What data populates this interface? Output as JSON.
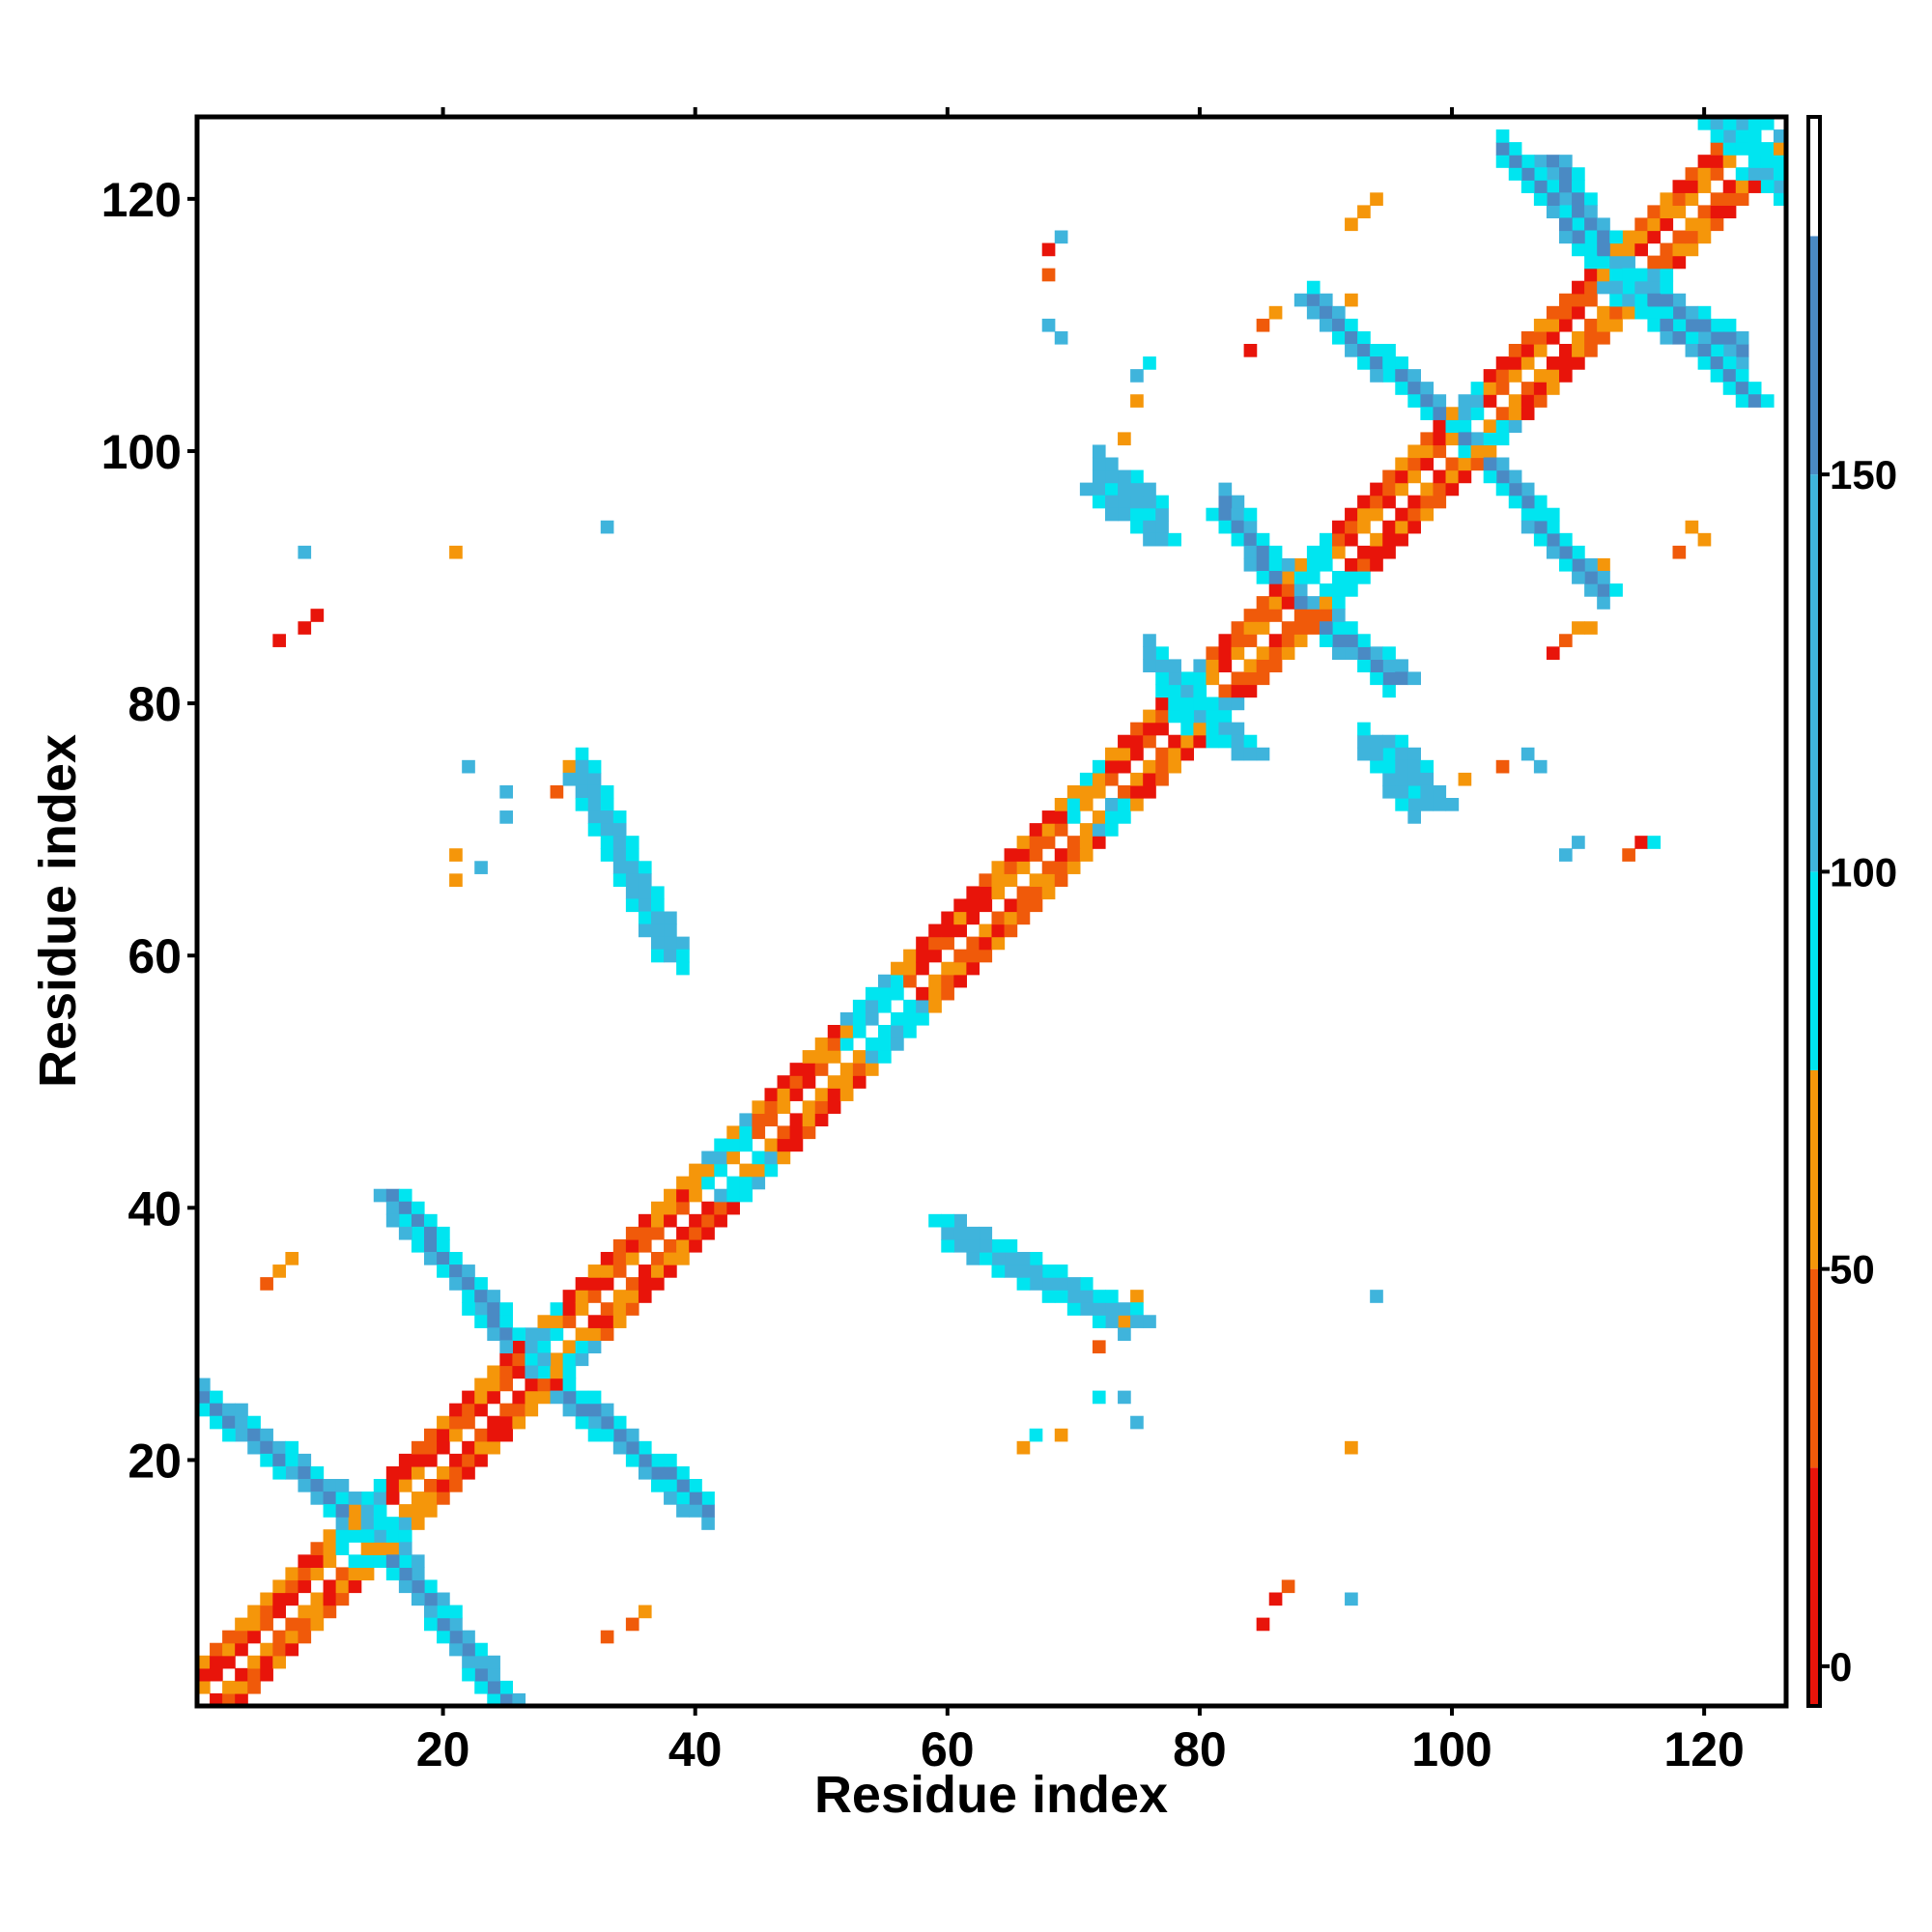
{
  "chart_data": {
    "type": "heatmap",
    "xlabel": "Residue index",
    "ylabel": "Residue index",
    "xlim": [
      1,
      126
    ],
    "ylim": [
      1,
      126
    ],
    "x_ticks": [
      20,
      40,
      60,
      80,
      100,
      120
    ],
    "y_ticks": [
      20,
      40,
      60,
      80,
      100,
      120
    ],
    "colorbar": {
      "ticks": [
        0,
        50,
        100,
        150
      ],
      "range": [
        -5,
        195
      ],
      "stops": [
        {
          "from": -5,
          "to": 25,
          "color": "#e8140a"
        },
        {
          "from": 25,
          "to": 50,
          "color": "#f05a0a"
        },
        {
          "from": 50,
          "to": 75,
          "color": "#f5960a"
        },
        {
          "from": 75,
          "to": 100,
          "color": "#00e5f0"
        },
        {
          "from": 100,
          "to": 150,
          "color": "#3fb4dc"
        },
        {
          "from": 150,
          "to": 180,
          "color": "#4a8ac4"
        },
        {
          "from": 180,
          "to": 195,
          "color": "#ffffff"
        }
      ]
    },
    "diagonal_band": {
      "from": 1,
      "to": 126,
      "width": 3
    },
    "diagonal_bands": [
      {
        "from": 1,
        "to": 12,
        "mix": "warm"
      },
      {
        "from": 12,
        "to": 16,
        "mix": "cyan"
      },
      {
        "from": 16,
        "to": 27,
        "mix": "warm"
      },
      {
        "from": 27,
        "to": 30,
        "mix": "cyan"
      },
      {
        "from": 30,
        "to": 41,
        "mix": "warm"
      },
      {
        "from": 41,
        "to": 45,
        "mix": "cyan"
      },
      {
        "from": 45,
        "to": 52,
        "mix": "warm"
      },
      {
        "from": 52,
        "to": 57,
        "mix": "cyan"
      },
      {
        "from": 57,
        "to": 70,
        "mix": "warm"
      },
      {
        "from": 70,
        "to": 73,
        "mix": "cyan"
      },
      {
        "from": 73,
        "to": 78,
        "mix": "warm"
      },
      {
        "from": 78,
        "to": 81,
        "mix": "cyan"
      },
      {
        "from": 81,
        "to": 88,
        "mix": "warm"
      },
      {
        "from": 88,
        "to": 91,
        "mix": "cyan"
      },
      {
        "from": 91,
        "to": 100,
        "mix": "warm"
      },
      {
        "from": 100,
        "to": 103,
        "mix": "cyan"
      },
      {
        "from": 103,
        "to": 112,
        "mix": "warm"
      },
      {
        "from": 112,
        "to": 115,
        "mix": "cyan"
      },
      {
        "from": 115,
        "to": 122,
        "mix": "warm"
      },
      {
        "from": 122,
        "to": 126,
        "mix": "cyan"
      }
    ],
    "anti_diagonal_strands": [
      {
        "x0": 1,
        "y0": 25,
        "x1": 15,
        "y1": 14,
        "value": 155
      },
      {
        "x0": 15,
        "y0": 14,
        "x1": 25,
        "y1": 1,
        "value": 155
      },
      {
        "x0": 16,
        "y0": 41,
        "x1": 27,
        "y1": 28,
        "value": 155
      },
      {
        "x0": 27,
        "y0": 28,
        "x1": 40,
        "y1": 16,
        "value": 155
      },
      {
        "x0": 31,
        "y0": 74,
        "x1": 38,
        "y1": 60,
        "value": 140
      },
      {
        "x0": 60,
        "y0": 39,
        "x1": 75,
        "y1": 31,
        "value": 140
      },
      {
        "x0": 78,
        "y0": 81,
        "x1": 84,
        "y1": 76,
        "value": 110
      },
      {
        "x0": 82,
        "y0": 95,
        "x1": 88,
        "y1": 88,
        "value": 155
      },
      {
        "x0": 88,
        "y0": 88,
        "x1": 96,
        "y1": 82,
        "value": 155
      },
      {
        "x0": 89,
        "y0": 112,
        "x1": 101,
        "y1": 101,
        "value": 155
      },
      {
        "x0": 101,
        "y0": 101,
        "x1": 112,
        "y1": 89,
        "value": 155
      },
      {
        "x0": 108,
        "y0": 123,
        "x1": 114,
        "y1": 113,
        "value": 155
      },
      {
        "x0": 114,
        "y0": 113,
        "x1": 124,
        "y1": 104,
        "value": 155
      },
      {
        "x0": 121,
        "y0": 126,
        "x1": 126,
        "y1": 122,
        "value": 140
      },
      {
        "x0": 72,
        "y0": 97,
        "x1": 77,
        "y1": 93,
        "value": 130
      },
      {
        "x0": 95,
        "y0": 77,
        "x1": 99,
        "y1": 72,
        "value": 130
      }
    ],
    "scatter_cells": [
      {
        "x": 7,
        "y": 85,
        "value": 5
      },
      {
        "x": 9,
        "y": 86,
        "value": 5
      },
      {
        "x": 10,
        "y": 87,
        "value": 10
      },
      {
        "x": 9,
        "y": 92,
        "value": 120
      },
      {
        "x": 21,
        "y": 92,
        "value": 60
      },
      {
        "x": 33,
        "y": 94,
        "value": 120
      },
      {
        "x": 22,
        "y": 75,
        "value": 120
      },
      {
        "x": 25,
        "y": 73,
        "value": 130
      },
      {
        "x": 25,
        "y": 71,
        "value": 110
      },
      {
        "x": 29,
        "y": 73,
        "value": 30
      },
      {
        "x": 30,
        "y": 75,
        "value": 50
      },
      {
        "x": 31,
        "y": 76,
        "value": 90
      },
      {
        "x": 21,
        "y": 66,
        "value": 60
      },
      {
        "x": 21,
        "y": 68,
        "value": 60
      },
      {
        "x": 23,
        "y": 67,
        "value": 100
      },
      {
        "x": 6,
        "y": 34,
        "value": 40
      },
      {
        "x": 7,
        "y": 35,
        "value": 50
      },
      {
        "x": 8,
        "y": 36,
        "value": 60
      },
      {
        "x": 33,
        "y": 6,
        "value": 40
      },
      {
        "x": 35,
        "y": 7,
        "value": 40
      },
      {
        "x": 36,
        "y": 8,
        "value": 60
      },
      {
        "x": 66,
        "y": 21,
        "value": 60
      },
      {
        "x": 67,
        "y": 22,
        "value": 90
      },
      {
        "x": 69,
        "y": 22,
        "value": 60
      },
      {
        "x": 72,
        "y": 29,
        "value": 30
      },
      {
        "x": 74,
        "y": 31,
        "value": 60
      },
      {
        "x": 75,
        "y": 33,
        "value": 60
      },
      {
        "x": 72,
        "y": 25,
        "value": 90
      },
      {
        "x": 74,
        "y": 25,
        "value": 140
      },
      {
        "x": 75,
        "y": 23,
        "value": 140
      },
      {
        "x": 85,
        "y": 7,
        "value": 10
      },
      {
        "x": 86,
        "y": 9,
        "value": 10
      },
      {
        "x": 87,
        "y": 10,
        "value": 30
      },
      {
        "x": 92,
        "y": 9,
        "value": 130
      },
      {
        "x": 92,
        "y": 21,
        "value": 50
      },
      {
        "x": 94,
        "y": 33,
        "value": 130
      },
      {
        "x": 68,
        "y": 114,
        "value": 40
      },
      {
        "x": 68,
        "y": 116,
        "value": 10
      },
      {
        "x": 69,
        "y": 117,
        "value": 100
      },
      {
        "x": 68,
        "y": 110,
        "value": 120
      },
      {
        "x": 69,
        "y": 109,
        "value": 100
      },
      {
        "x": 75,
        "y": 104,
        "value": 60
      },
      {
        "x": 75,
        "y": 106,
        "value": 120
      },
      {
        "x": 76,
        "y": 107,
        "value": 90
      },
      {
        "x": 74,
        "y": 101,
        "value": 60
      },
      {
        "x": 84,
        "y": 108,
        "value": 10
      },
      {
        "x": 85,
        "y": 110,
        "value": 30
      },
      {
        "x": 86,
        "y": 111,
        "value": 50
      },
      {
        "x": 92,
        "y": 112,
        "value": 60
      },
      {
        "x": 92,
        "y": 118,
        "value": 50
      },
      {
        "x": 93,
        "y": 119,
        "value": 60
      },
      {
        "x": 94,
        "y": 120,
        "value": 70
      },
      {
        "x": 101,
        "y": 74,
        "value": 60
      },
      {
        "x": 104,
        "y": 75,
        "value": 40
      },
      {
        "x": 106,
        "y": 76,
        "value": 100
      },
      {
        "x": 107,
        "y": 75,
        "value": 100
      },
      {
        "x": 108,
        "y": 84,
        "value": 10
      },
      {
        "x": 109,
        "y": 85,
        "value": 30
      },
      {
        "x": 110,
        "y": 86,
        "value": 50
      },
      {
        "x": 111,
        "y": 86,
        "value": 60
      },
      {
        "x": 109,
        "y": 68,
        "value": 120
      },
      {
        "x": 110,
        "y": 69,
        "value": 100
      },
      {
        "x": 114,
        "y": 68,
        "value": 30
      },
      {
        "x": 115,
        "y": 69,
        "value": 10
      },
      {
        "x": 116,
        "y": 69,
        "value": 90
      },
      {
        "x": 112,
        "y": 91,
        "value": 60
      },
      {
        "x": 118,
        "y": 92,
        "value": 40
      },
      {
        "x": 119,
        "y": 94,
        "value": 60
      },
      {
        "x": 120,
        "y": 93,
        "value": 60
      }
    ]
  }
}
